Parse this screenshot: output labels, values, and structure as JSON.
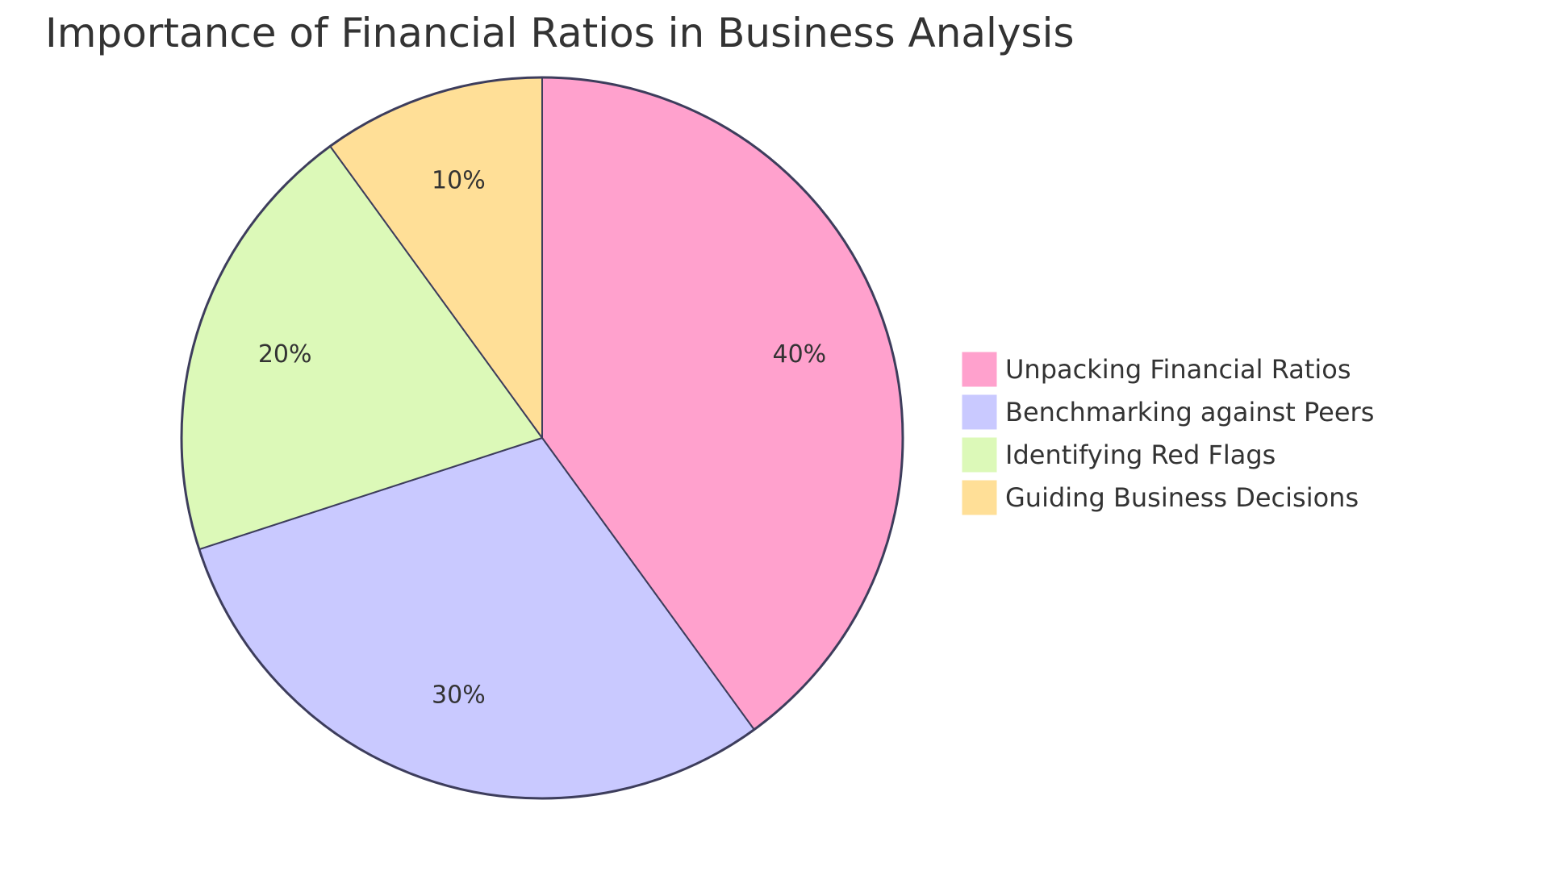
{
  "chart_data": {
    "type": "pie",
    "title": "Importance of Financial Ratios in Business Analysis",
    "categories": [
      "Unpacking Financial Ratios",
      "Benchmarking against Peers",
      "Identifying Red Flags",
      "Guiding Business Decisions"
    ],
    "values": [
      40,
      30,
      20,
      10
    ],
    "slice_labels": [
      "40%",
      "30%",
      "20%",
      "10%"
    ],
    "colors": [
      "#ffa1cd",
      "#c9c9ff",
      "#dcf9b8",
      "#ffdf97"
    ],
    "edge_color": "#3d3d5c",
    "legend_position": "right"
  }
}
